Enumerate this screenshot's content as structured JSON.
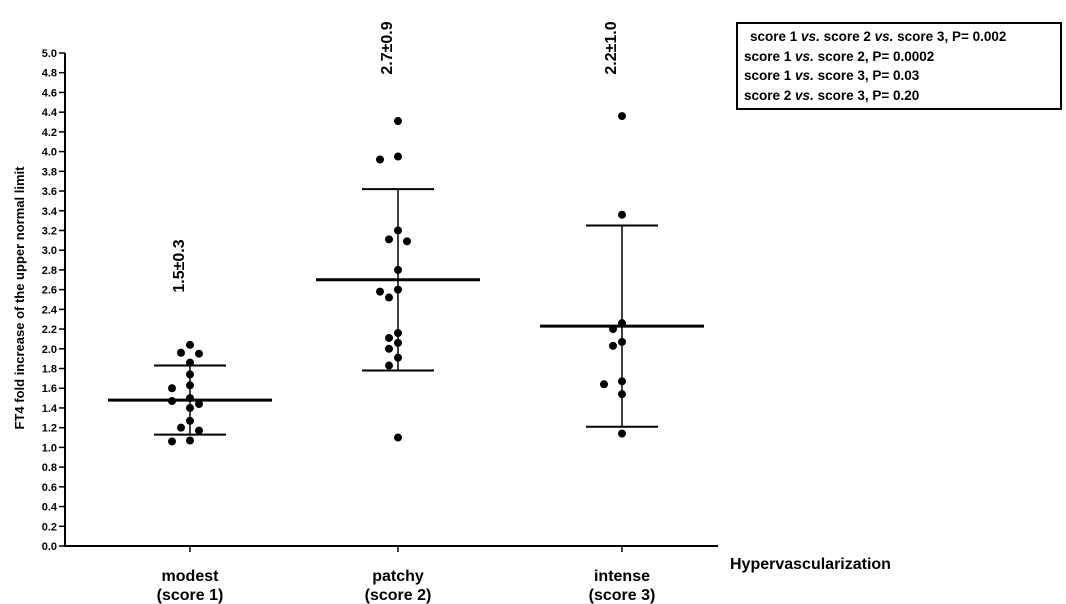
{
  "chart_data": {
    "type": "scatter",
    "ylabel": "FT4 fold increase of the upper normal limit",
    "xlabel": "Hypervascularization",
    "ylim": [
      0,
      5.0
    ],
    "yticks": [
      "0.0",
      "0.2",
      "0.4",
      "0.6",
      "0.8",
      "1.0",
      "1.2",
      "1.4",
      "1.6",
      "1.8",
      "2.0",
      "2.2",
      "2.4",
      "2.6",
      "2.8",
      "3.0",
      "3.2",
      "3.4",
      "3.6",
      "3.8",
      "4.0",
      "4.2",
      "4.4",
      "4.6",
      "4.8",
      "5.0"
    ],
    "categories": [
      {
        "line1": "modest",
        "line2": "(score 1)"
      },
      {
        "line1": "patchy",
        "line2": "(score 2)"
      },
      {
        "line1": "intense",
        "line2": "(score 3)"
      }
    ],
    "groups": [
      {
        "label": "1.5±0.3",
        "mean": 1.48,
        "upper": 1.83,
        "lower": 1.13,
        "points": [
          2.04,
          1.96,
          1.95,
          1.86,
          1.74,
          1.63,
          1.6,
          1.5,
          1.47,
          1.44,
          1.4,
          1.27,
          1.2,
          1.17,
          1.07,
          1.06
        ]
      },
      {
        "label": "2.7±0.9",
        "mean": 2.7,
        "upper": 3.62,
        "lower": 1.78,
        "points": [
          4.31,
          3.95,
          3.92,
          3.2,
          3.11,
          3.09,
          2.8,
          2.6,
          2.58,
          2.52,
          2.16,
          2.11,
          2.06,
          2.0,
          1.91,
          1.83,
          1.1
        ]
      },
      {
        "label": "2.2±1.0",
        "mean": 2.23,
        "upper": 3.25,
        "lower": 1.21,
        "points": [
          4.36,
          3.36,
          2.26,
          2.2,
          2.07,
          2.03,
          1.67,
          1.64,
          1.54,
          1.14
        ]
      }
    ],
    "stats": [
      [
        {
          "t": "score 1 "
        },
        {
          "t": "vs.",
          "i": true
        },
        {
          "t": " score 2 "
        },
        {
          "t": "vs.",
          "i": true
        },
        {
          "t": " score 3, P= 0.002"
        }
      ],
      [
        {
          "t": "score 1 "
        },
        {
          "t": "vs.",
          "i": true
        },
        {
          "t": " score 2, P= 0.0002"
        }
      ],
      [
        {
          "t": "score 1 "
        },
        {
          "t": "vs.",
          "i": true
        },
        {
          "t": " score 3, P= 0.03"
        }
      ],
      [
        {
          "t": "score 2 "
        },
        {
          "t": "vs.",
          "i": true
        },
        {
          "t": " score 3, P= 0.20"
        }
      ]
    ],
    "colors": {
      "marks": "#000000",
      "background": "#ffffff"
    }
  }
}
